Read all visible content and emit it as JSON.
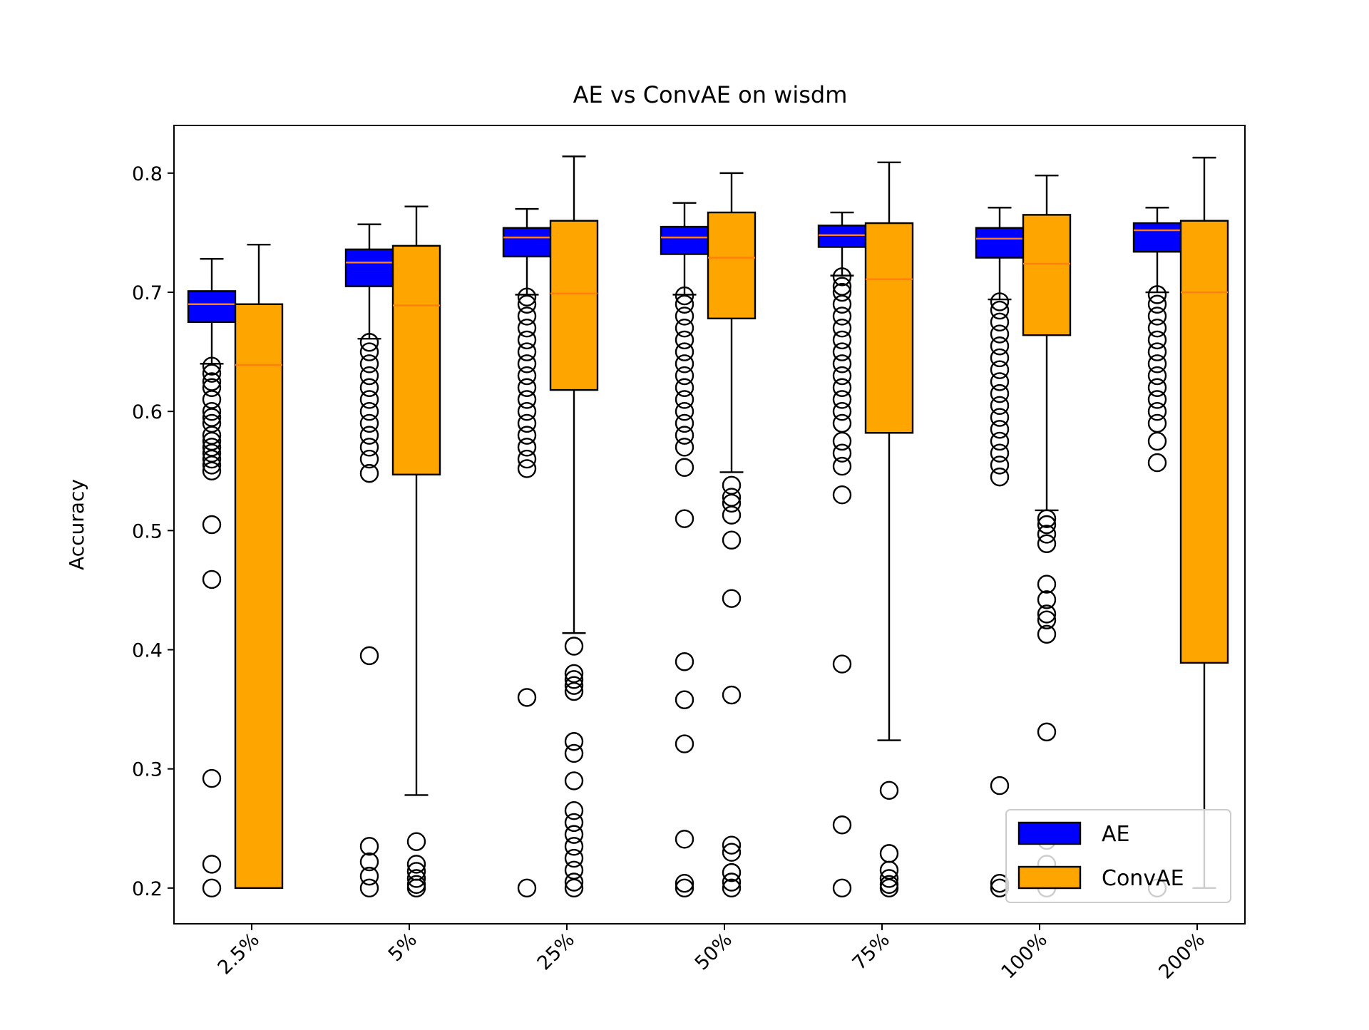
{
  "chart_data": {
    "type": "boxplot",
    "title": "AE vs ConvAE on wisdm",
    "xlabel": "",
    "ylabel": "Accuracy",
    "ylim": [
      0.17,
      0.84
    ],
    "yticks": [
      0.2,
      0.3,
      0.4,
      0.5,
      0.6,
      0.7,
      0.8
    ],
    "ytick_labels": [
      "0.2",
      "0.3",
      "0.4",
      "0.5",
      "0.6",
      "0.7",
      "0.8"
    ],
    "categories": [
      "2.5%",
      "5%",
      "25%",
      "50%",
      "75%",
      "100%",
      "200%"
    ],
    "legend_position": "bottom-right",
    "grid": false,
    "series": [
      {
        "name": "AE",
        "color": "#0000ff",
        "median_color": "#ff7f0e",
        "boxes": [
          {
            "q1": 0.675,
            "median": 0.69,
            "q3": 0.701,
            "whisker_low": 0.64,
            "whisker_high": 0.728,
            "outliers": [
              0.638,
              0.632,
              0.625,
              0.62,
              0.61,
              0.6,
              0.595,
              0.59,
              0.58,
              0.575,
              0.57,
              0.565,
              0.56,
              0.555,
              0.55,
              0.505,
              0.459,
              0.292,
              0.22,
              0.2
            ]
          },
          {
            "q1": 0.705,
            "median": 0.725,
            "q3": 0.736,
            "whisker_low": 0.661,
            "whisker_high": 0.757,
            "outliers": [
              0.658,
              0.65,
              0.64,
              0.63,
              0.62,
              0.61,
              0.6,
              0.59,
              0.58,
              0.57,
              0.56,
              0.548,
              0.395,
              0.235,
              0.222,
              0.21,
              0.2
            ]
          },
          {
            "q1": 0.73,
            "median": 0.746,
            "q3": 0.754,
            "whisker_low": 0.698,
            "whisker_high": 0.77,
            "outliers": [
              0.696,
              0.69,
              0.68,
              0.67,
              0.66,
              0.65,
              0.64,
              0.63,
              0.62,
              0.61,
              0.6,
              0.59,
              0.58,
              0.57,
              0.56,
              0.552,
              0.36,
              0.2
            ]
          },
          {
            "q1": 0.732,
            "median": 0.746,
            "q3": 0.755,
            "whisker_low": 0.698,
            "whisker_high": 0.775,
            "outliers": [
              0.697,
              0.69,
              0.68,
              0.67,
              0.66,
              0.65,
              0.64,
              0.63,
              0.62,
              0.61,
              0.6,
              0.59,
              0.58,
              0.57,
              0.553,
              0.51,
              0.39,
              0.358,
              0.321,
              0.241,
              0.204,
              0.2
            ]
          },
          {
            "q1": 0.738,
            "median": 0.748,
            "q3": 0.756,
            "whisker_low": 0.714,
            "whisker_high": 0.767,
            "outliers": [
              0.713,
              0.705,
              0.7,
              0.69,
              0.68,
              0.67,
              0.66,
              0.65,
              0.64,
              0.63,
              0.62,
              0.61,
              0.6,
              0.59,
              0.575,
              0.565,
              0.554,
              0.53,
              0.388,
              0.253,
              0.2
            ]
          },
          {
            "q1": 0.729,
            "median": 0.745,
            "q3": 0.754,
            "whisker_low": 0.694,
            "whisker_high": 0.771,
            "outliers": [
              0.692,
              0.685,
              0.675,
              0.665,
              0.655,
              0.645,
              0.635,
              0.625,
              0.615,
              0.605,
              0.595,
              0.585,
              0.575,
              0.565,
              0.555,
              0.545,
              0.286,
              0.204,
              0.2
            ]
          },
          {
            "q1": 0.734,
            "median": 0.752,
            "q3": 0.758,
            "whisker_low": 0.7,
            "whisker_high": 0.771,
            "outliers": [
              0.698,
              0.69,
              0.68,
              0.67,
              0.66,
              0.65,
              0.64,
              0.63,
              0.62,
              0.61,
              0.6,
              0.59,
              0.575,
              0.557,
              0.2
            ]
          }
        ]
      },
      {
        "name": "ConvAE",
        "color": "#ffa500",
        "median_color": "#ff7f0e",
        "boxes": [
          {
            "q1": 0.2,
            "median": 0.639,
            "q3": 0.69,
            "whisker_low": 0.2,
            "whisker_high": 0.74,
            "outliers": []
          },
          {
            "q1": 0.547,
            "median": 0.689,
            "q3": 0.739,
            "whisker_low": 0.278,
            "whisker_high": 0.772,
            "outliers": [
              0.239,
              0.22,
              0.214,
              0.208,
              0.203,
              0.2
            ]
          },
          {
            "q1": 0.618,
            "median": 0.699,
            "q3": 0.76,
            "whisker_low": 0.414,
            "whisker_high": 0.814,
            "outliers": [
              0.403,
              0.38,
              0.375,
              0.37,
              0.365,
              0.323,
              0.313,
              0.29,
              0.265,
              0.255,
              0.245,
              0.235,
              0.225,
              0.215,
              0.205,
              0.2
            ]
          },
          {
            "q1": 0.678,
            "median": 0.729,
            "q3": 0.767,
            "whisker_low": 0.549,
            "whisker_high": 0.8,
            "outliers": [
              0.538,
              0.528,
              0.523,
              0.513,
              0.492,
              0.443,
              0.362,
              0.236,
              0.23,
              0.213,
              0.205,
              0.2
            ]
          },
          {
            "q1": 0.582,
            "median": 0.711,
            "q3": 0.758,
            "whisker_low": 0.324,
            "whisker_high": 0.809,
            "outliers": [
              0.282,
              0.229,
              0.215,
              0.208,
              0.203,
              0.2
            ]
          },
          {
            "q1": 0.664,
            "median": 0.724,
            "q3": 0.765,
            "whisker_low": 0.517,
            "whisker_high": 0.798,
            "outliers": [
              0.51,
              0.505,
              0.497,
              0.489,
              0.455,
              0.442,
              0.43,
              0.425,
              0.413,
              0.331,
              0.24,
              0.22,
              0.2
            ]
          },
          {
            "q1": 0.389,
            "median": 0.7,
            "q3": 0.76,
            "whisker_low": 0.2,
            "whisker_high": 0.813,
            "outliers": []
          }
        ]
      }
    ]
  }
}
